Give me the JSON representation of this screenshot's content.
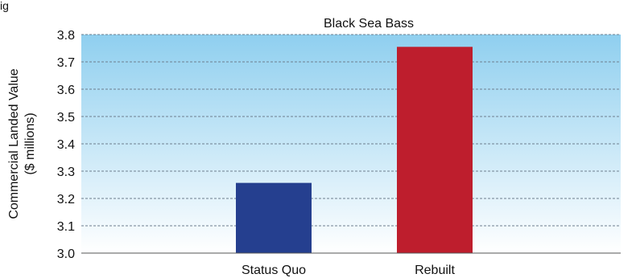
{
  "page": {
    "corner_text": "ig"
  },
  "chart_data": {
    "type": "bar",
    "title": "Black Sea Bass",
    "xlabel": "",
    "ylabel_lines": [
      "Commercial Landed Value",
      "($ millions)"
    ],
    "categories": [
      "Status Quo",
      "Rebuilt"
    ],
    "values": [
      3.257,
      3.755
    ],
    "bar_colors": [
      "#253f8f",
      "#be1e2d"
    ],
    "ylim": [
      3.0,
      3.8
    ],
    "yticks": [
      "3.0",
      "3.1",
      "3.2",
      "3.3",
      "3.4",
      "3.5",
      "3.6",
      "3.7",
      "3.8"
    ],
    "grid": "dashed horizontal",
    "background_gradient": [
      "#8fcfef",
      "#ffffff"
    ],
    "legend": "none"
  }
}
